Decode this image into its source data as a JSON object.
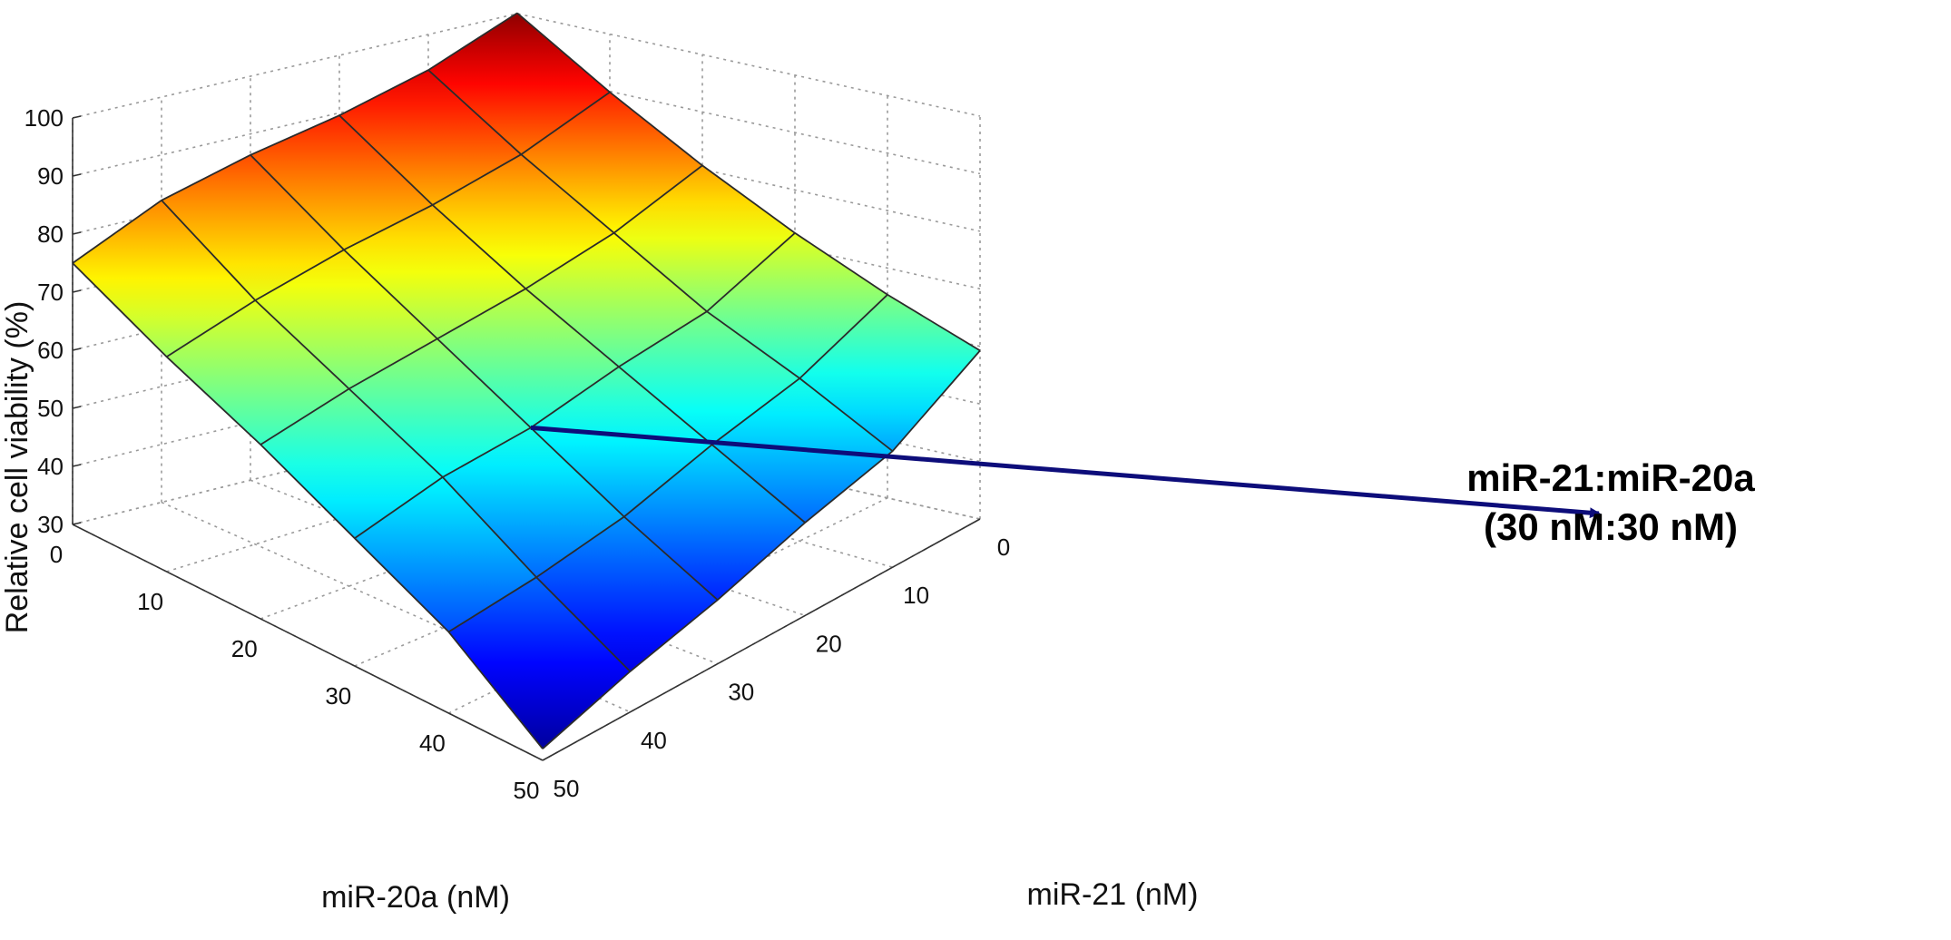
{
  "chart_data": {
    "type": "surface",
    "zlabel": "Relative cell viability (%)",
    "xlabel": "miR-21 (nM)",
    "ylabel": "miR-20a (nM)",
    "zlim": [
      30,
      100
    ],
    "z_ticks": [
      "30",
      "40",
      "50",
      "60",
      "70",
      "80",
      "90",
      "100"
    ],
    "x_ticks": [
      "0",
      "10",
      "20",
      "30",
      "40",
      "50"
    ],
    "y_ticks": [
      "0",
      "10",
      "20",
      "30",
      "40",
      "50"
    ],
    "colormap": "jet",
    "grid": true,
    "x": [
      0,
      10,
      20,
      30,
      40,
      50
    ],
    "y": [
      0,
      10,
      20,
      30,
      40,
      50
    ],
    "z_rows_by_miR20a": [
      [
        99,
        89,
        80,
        72,
        65,
        59
      ],
      [
        93,
        83,
        74,
        65,
        58,
        50
      ],
      [
        89,
        79,
        70,
        62,
        54,
        46
      ],
      [
        86,
        76,
        67,
        58,
        49,
        41
      ],
      [
        82,
        72,
        64,
        56,
        46,
        37
      ],
      [
        75,
        67,
        60,
        52,
        44,
        32
      ]
    ],
    "annotation": {
      "line1": "miR-21:miR-20a",
      "line2": "(30 nM:30 nM)",
      "x": 30,
      "y": 30,
      "arrow_color": "#0d0d7a"
    }
  }
}
